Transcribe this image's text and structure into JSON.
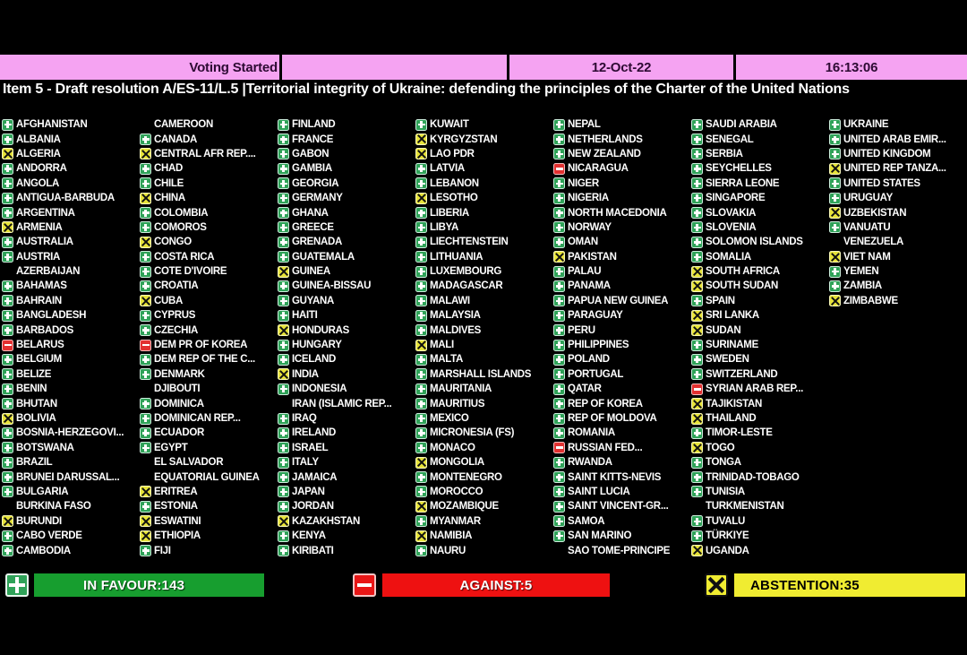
{
  "status_bar": {
    "label": "Voting Started",
    "date": "12-Oct-22",
    "time": "16:13:06"
  },
  "title": "Item 5 - Draft resolution A/ES-11/L.5 |Territorial integrity of Ukraine: defending the principles of the Charter of the United Nations",
  "vote_key": {
    "Y": "in-favour",
    "N": "against",
    "A": "abstention",
    "": "no-vote"
  },
  "columns": [
    [
      {
        "name": "AFGHANISTAN",
        "vote": "Y"
      },
      {
        "name": "ALBANIA",
        "vote": "Y"
      },
      {
        "name": "ALGERIA",
        "vote": "A"
      },
      {
        "name": "ANDORRA",
        "vote": "Y"
      },
      {
        "name": "ANGOLA",
        "vote": "Y"
      },
      {
        "name": "ANTIGUA-BARBUDA",
        "vote": "Y"
      },
      {
        "name": "ARGENTINA",
        "vote": "Y"
      },
      {
        "name": "ARMENIA",
        "vote": "A"
      },
      {
        "name": "AUSTRALIA",
        "vote": "Y"
      },
      {
        "name": "AUSTRIA",
        "vote": "Y"
      },
      {
        "name": "AZERBAIJAN",
        "vote": ""
      },
      {
        "name": "BAHAMAS",
        "vote": "Y"
      },
      {
        "name": "BAHRAIN",
        "vote": "Y"
      },
      {
        "name": "BANGLADESH",
        "vote": "Y"
      },
      {
        "name": "BARBADOS",
        "vote": "Y"
      },
      {
        "name": "BELARUS",
        "vote": "N"
      },
      {
        "name": "BELGIUM",
        "vote": "Y"
      },
      {
        "name": "BELIZE",
        "vote": "Y"
      },
      {
        "name": "BENIN",
        "vote": "Y"
      },
      {
        "name": "BHUTAN",
        "vote": "Y"
      },
      {
        "name": "BOLIVIA",
        "vote": "A"
      },
      {
        "name": "BOSNIA-HERZEGOVI...",
        "vote": "Y"
      },
      {
        "name": "BOTSWANA",
        "vote": "Y"
      },
      {
        "name": "BRAZIL",
        "vote": "Y"
      },
      {
        "name": "BRUNEI DARUSSAL...",
        "vote": "Y"
      },
      {
        "name": "BULGARIA",
        "vote": "Y"
      },
      {
        "name": "BURKINA FASO",
        "vote": ""
      },
      {
        "name": "BURUNDI",
        "vote": "A"
      },
      {
        "name": "CABO VERDE",
        "vote": "Y"
      },
      {
        "name": "CAMBODIA",
        "vote": "Y"
      }
    ],
    [
      {
        "name": "CAMEROON",
        "vote": ""
      },
      {
        "name": "CANADA",
        "vote": "Y"
      },
      {
        "name": "CENTRAL AFR REP....",
        "vote": "A"
      },
      {
        "name": "CHAD",
        "vote": "Y"
      },
      {
        "name": "CHILE",
        "vote": "Y"
      },
      {
        "name": "CHINA",
        "vote": "A"
      },
      {
        "name": "COLOMBIA",
        "vote": "Y"
      },
      {
        "name": "COMOROS",
        "vote": "Y"
      },
      {
        "name": "CONGO",
        "vote": "A"
      },
      {
        "name": "COSTA RICA",
        "vote": "Y"
      },
      {
        "name": "COTE D'IVOIRE",
        "vote": "Y"
      },
      {
        "name": "CROATIA",
        "vote": "Y"
      },
      {
        "name": "CUBA",
        "vote": "A"
      },
      {
        "name": "CYPRUS",
        "vote": "Y"
      },
      {
        "name": "CZECHIA",
        "vote": "Y"
      },
      {
        "name": "DEM PR OF KOREA",
        "vote": "N"
      },
      {
        "name": "DEM REP OF THE C...",
        "vote": "Y"
      },
      {
        "name": "DENMARK",
        "vote": "Y"
      },
      {
        "name": "DJIBOUTI",
        "vote": ""
      },
      {
        "name": "DOMINICA",
        "vote": "Y"
      },
      {
        "name": "DOMINICAN REP...",
        "vote": "Y"
      },
      {
        "name": "ECUADOR",
        "vote": "Y"
      },
      {
        "name": "EGYPT",
        "vote": "Y"
      },
      {
        "name": "EL SALVADOR",
        "vote": ""
      },
      {
        "name": "EQUATORIAL GUINEA",
        "vote": ""
      },
      {
        "name": "ERITREA",
        "vote": "A"
      },
      {
        "name": "ESTONIA",
        "vote": "Y"
      },
      {
        "name": "ESWATINI",
        "vote": "A"
      },
      {
        "name": "ETHIOPIA",
        "vote": "A"
      },
      {
        "name": "FIJI",
        "vote": "Y"
      }
    ],
    [
      {
        "name": "FINLAND",
        "vote": "Y"
      },
      {
        "name": "FRANCE",
        "vote": "Y"
      },
      {
        "name": "GABON",
        "vote": "Y"
      },
      {
        "name": "GAMBIA",
        "vote": "Y"
      },
      {
        "name": "GEORGIA",
        "vote": "Y"
      },
      {
        "name": "GERMANY",
        "vote": "Y"
      },
      {
        "name": "GHANA",
        "vote": "Y"
      },
      {
        "name": "GREECE",
        "vote": "Y"
      },
      {
        "name": "GRENADA",
        "vote": "Y"
      },
      {
        "name": "GUATEMALA",
        "vote": "Y"
      },
      {
        "name": "GUINEA",
        "vote": "A"
      },
      {
        "name": "GUINEA-BISSAU",
        "vote": "Y"
      },
      {
        "name": "GUYANA",
        "vote": "Y"
      },
      {
        "name": "HAITI",
        "vote": "Y"
      },
      {
        "name": "HONDURAS",
        "vote": "A"
      },
      {
        "name": "HUNGARY",
        "vote": "Y"
      },
      {
        "name": "ICELAND",
        "vote": "Y"
      },
      {
        "name": "INDIA",
        "vote": "A"
      },
      {
        "name": "INDONESIA",
        "vote": "Y"
      },
      {
        "name": "IRAN (ISLAMIC REP...",
        "vote": ""
      },
      {
        "name": "IRAQ",
        "vote": "Y"
      },
      {
        "name": "IRELAND",
        "vote": "Y"
      },
      {
        "name": "ISRAEL",
        "vote": "Y"
      },
      {
        "name": "ITALY",
        "vote": "Y"
      },
      {
        "name": "JAMAICA",
        "vote": "Y"
      },
      {
        "name": "JAPAN",
        "vote": "Y"
      },
      {
        "name": "JORDAN",
        "vote": "Y"
      },
      {
        "name": "KAZAKHSTAN",
        "vote": "A"
      },
      {
        "name": "KENYA",
        "vote": "Y"
      },
      {
        "name": "KIRIBATI",
        "vote": "Y"
      }
    ],
    [
      {
        "name": "KUWAIT",
        "vote": "Y"
      },
      {
        "name": "KYRGYZSTAN",
        "vote": "A"
      },
      {
        "name": "LAO PDR",
        "vote": "A"
      },
      {
        "name": "LATVIA",
        "vote": "Y"
      },
      {
        "name": "LEBANON",
        "vote": "Y"
      },
      {
        "name": "LESOTHO",
        "vote": "A"
      },
      {
        "name": "LIBERIA",
        "vote": "Y"
      },
      {
        "name": "LIBYA",
        "vote": "Y"
      },
      {
        "name": "LIECHTENSTEIN",
        "vote": "Y"
      },
      {
        "name": "LITHUANIA",
        "vote": "Y"
      },
      {
        "name": "LUXEMBOURG",
        "vote": "Y"
      },
      {
        "name": "MADAGASCAR",
        "vote": "Y"
      },
      {
        "name": "MALAWI",
        "vote": "Y"
      },
      {
        "name": "MALAYSIA",
        "vote": "Y"
      },
      {
        "name": "MALDIVES",
        "vote": "Y"
      },
      {
        "name": "MALI",
        "vote": "A"
      },
      {
        "name": "MALTA",
        "vote": "Y"
      },
      {
        "name": "MARSHALL ISLANDS",
        "vote": "Y"
      },
      {
        "name": "MAURITANIA",
        "vote": "Y"
      },
      {
        "name": "MAURITIUS",
        "vote": "Y"
      },
      {
        "name": "MEXICO",
        "vote": "Y"
      },
      {
        "name": "MICRONESIA (FS)",
        "vote": "Y"
      },
      {
        "name": "MONACO",
        "vote": "Y"
      },
      {
        "name": "MONGOLIA",
        "vote": "A"
      },
      {
        "name": "MONTENEGRO",
        "vote": "Y"
      },
      {
        "name": "MOROCCO",
        "vote": "Y"
      },
      {
        "name": "MOZAMBIQUE",
        "vote": "A"
      },
      {
        "name": "MYANMAR",
        "vote": "Y"
      },
      {
        "name": "NAMIBIA",
        "vote": "A"
      },
      {
        "name": "NAURU",
        "vote": "Y"
      }
    ],
    [
      {
        "name": "NEPAL",
        "vote": "Y"
      },
      {
        "name": "NETHERLANDS",
        "vote": "Y"
      },
      {
        "name": "NEW ZEALAND",
        "vote": "Y"
      },
      {
        "name": "NICARAGUA",
        "vote": "N"
      },
      {
        "name": "NIGER",
        "vote": "Y"
      },
      {
        "name": "NIGERIA",
        "vote": "Y"
      },
      {
        "name": "NORTH MACEDONIA",
        "vote": "Y"
      },
      {
        "name": "NORWAY",
        "vote": "Y"
      },
      {
        "name": "OMAN",
        "vote": "Y"
      },
      {
        "name": "PAKISTAN",
        "vote": "A"
      },
      {
        "name": "PALAU",
        "vote": "Y"
      },
      {
        "name": "PANAMA",
        "vote": "Y"
      },
      {
        "name": "PAPUA NEW GUINEA",
        "vote": "Y"
      },
      {
        "name": "PARAGUAY",
        "vote": "Y"
      },
      {
        "name": "PERU",
        "vote": "Y"
      },
      {
        "name": "PHILIPPINES",
        "vote": "Y"
      },
      {
        "name": "POLAND",
        "vote": "Y"
      },
      {
        "name": "PORTUGAL",
        "vote": "Y"
      },
      {
        "name": "QATAR",
        "vote": "Y"
      },
      {
        "name": "REP OF KOREA",
        "vote": "Y"
      },
      {
        "name": "REP OF MOLDOVA",
        "vote": "Y"
      },
      {
        "name": "ROMANIA",
        "vote": "Y"
      },
      {
        "name": "RUSSIAN FED...",
        "vote": "N"
      },
      {
        "name": "RWANDA",
        "vote": "Y"
      },
      {
        "name": "SAINT KITTS-NEVIS",
        "vote": "Y"
      },
      {
        "name": "SAINT LUCIA",
        "vote": "Y"
      },
      {
        "name": "SAINT VINCENT-GR...",
        "vote": "Y"
      },
      {
        "name": "SAMOA",
        "vote": "Y"
      },
      {
        "name": "SAN MARINO",
        "vote": "Y"
      },
      {
        "name": "SAO TOME-PRINCIPE",
        "vote": ""
      }
    ],
    [
      {
        "name": "SAUDI ARABIA",
        "vote": "Y"
      },
      {
        "name": "SENEGAL",
        "vote": "Y"
      },
      {
        "name": "SERBIA",
        "vote": "Y"
      },
      {
        "name": "SEYCHELLES",
        "vote": "Y"
      },
      {
        "name": "SIERRA LEONE",
        "vote": "Y"
      },
      {
        "name": "SINGAPORE",
        "vote": "Y"
      },
      {
        "name": "SLOVAKIA",
        "vote": "Y"
      },
      {
        "name": "SLOVENIA",
        "vote": "Y"
      },
      {
        "name": "SOLOMON ISLANDS",
        "vote": "Y"
      },
      {
        "name": "SOMALIA",
        "vote": "Y"
      },
      {
        "name": "SOUTH AFRICA",
        "vote": "A"
      },
      {
        "name": "SOUTH SUDAN",
        "vote": "A"
      },
      {
        "name": "SPAIN",
        "vote": "Y"
      },
      {
        "name": "SRI LANKA",
        "vote": "A"
      },
      {
        "name": "SUDAN",
        "vote": "A"
      },
      {
        "name": "SURINAME",
        "vote": "Y"
      },
      {
        "name": "SWEDEN",
        "vote": "Y"
      },
      {
        "name": "SWITZERLAND",
        "vote": "Y"
      },
      {
        "name": "SYRIAN ARAB REP...",
        "vote": "N"
      },
      {
        "name": "TAJIKISTAN",
        "vote": "A"
      },
      {
        "name": "THAILAND",
        "vote": "A"
      },
      {
        "name": "TIMOR-LESTE",
        "vote": "Y"
      },
      {
        "name": "TOGO",
        "vote": "A"
      },
      {
        "name": "TONGA",
        "vote": "Y"
      },
      {
        "name": "TRINIDAD-TOBAGO",
        "vote": "Y"
      },
      {
        "name": "TUNISIA",
        "vote": "Y"
      },
      {
        "name": "TURKMENISTAN",
        "vote": ""
      },
      {
        "name": "TUVALU",
        "vote": "Y"
      },
      {
        "name": "TÜRKIYE",
        "vote": "Y"
      },
      {
        "name": "UGANDA",
        "vote": "A"
      }
    ],
    [
      {
        "name": "UKRAINE",
        "vote": "Y"
      },
      {
        "name": "UNITED ARAB EMIR...",
        "vote": "Y"
      },
      {
        "name": "UNITED KINGDOM",
        "vote": "Y"
      },
      {
        "name": "UNITED REP TANZA...",
        "vote": "A"
      },
      {
        "name": "UNITED STATES",
        "vote": "Y"
      },
      {
        "name": "URUGUAY",
        "vote": "Y"
      },
      {
        "name": "UZBEKISTAN",
        "vote": "A"
      },
      {
        "name": "VANUATU",
        "vote": "Y"
      },
      {
        "name": "VENEZUELA",
        "vote": ""
      },
      {
        "name": "VIET NAM",
        "vote": "A"
      },
      {
        "name": "YEMEN",
        "vote": "Y"
      },
      {
        "name": "ZAMBIA",
        "vote": "Y"
      },
      {
        "name": "ZIMBABWE",
        "vote": "A"
      }
    ]
  ],
  "summary": {
    "in_favour": {
      "label": "IN FAVOUR:143",
      "count": 143,
      "color": "#179e2f"
    },
    "against": {
      "label": "AGAINST:5",
      "count": 5,
      "color": "#ee1111"
    },
    "abstention": {
      "label": "ABSTENTION:35",
      "count": 35,
      "color": "#f0ec31"
    }
  },
  "colors": {
    "background": "#000000",
    "status_bar_bg": "#f5a3f2",
    "favour_icon": "#2fa258",
    "against_icon": "#e23030",
    "abstain_icon": "#e7e33a",
    "title_text": "#ffffff"
  }
}
